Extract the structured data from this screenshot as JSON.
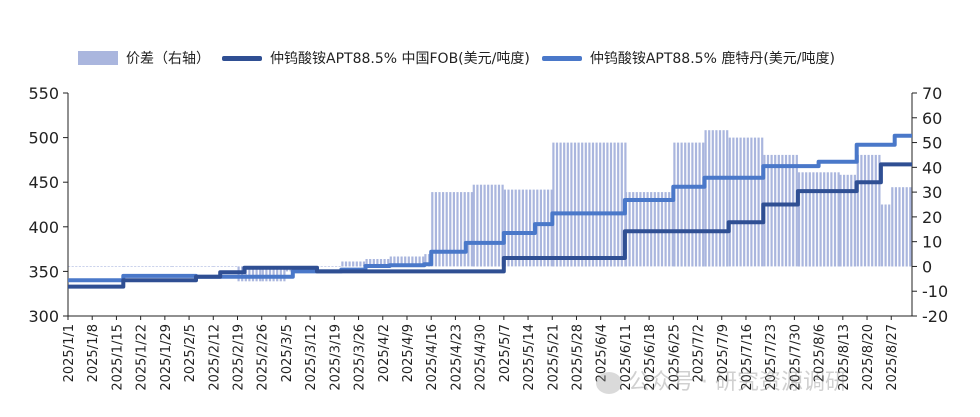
{
  "chart_data": {
    "type": "bar+line",
    "left_axis": {
      "ylim": [
        300,
        550
      ],
      "ticks": [
        300,
        350,
        400,
        450,
        500,
        550
      ]
    },
    "right_axis": {
      "ylim": [
        -20,
        70
      ],
      "ticks": [
        -20,
        -10,
        0,
        10,
        20,
        30,
        40,
        50,
        60,
        70
      ]
    },
    "x_tick_labels": [
      "2025/1/1",
      "2025/1/8",
      "2025/1/15",
      "2025/1/22",
      "2025/1/29",
      "2025/2/5",
      "2025/2/12",
      "2025/2/19",
      "2025/2/26",
      "2025/3/5",
      "2025/3/12",
      "2025/3/19",
      "2025/3/26",
      "2025/4/2",
      "2025/4/9",
      "2025/4/16",
      "2025/4/23",
      "2025/4/30",
      "2025/5/7",
      "2025/5/14",
      "2025/5/21",
      "2025/5/28",
      "2025/6/4",
      "2025/6/11",
      "2025/6/18",
      "2025/6/25",
      "2025/7/2",
      "2025/7/9",
      "2025/7/16",
      "2025/7/23",
      "2025/7/30",
      "2025/8/6",
      "2025/8/13",
      "2025/8/20",
      "2025/8/27"
    ],
    "legend": [
      {
        "label": "价差（右轴）",
        "color": "#aab6de",
        "kind": "bar"
      },
      {
        "label": "仲钨酸铵APT88.5% 中国FOB(美元/吨度)",
        "color": "#2f4f93",
        "kind": "line"
      },
      {
        "label": "仲钨酸铵APT88.5% 鹿特丹(美元/吨度)",
        "color": "#4a78c9",
        "kind": "line"
      }
    ],
    "series": [
      {
        "name": "仲钨酸铵APT88.5% 中国FOB(美元/吨度)",
        "axis": "left",
        "steps": [
          [
            "2025/1/1",
            333
          ],
          [
            "2025/1/17",
            340
          ],
          [
            "2025/1/24",
            340
          ],
          [
            "2025/2/7",
            344
          ],
          [
            "2025/2/14",
            349
          ],
          [
            "2025/2/21",
            354
          ],
          [
            "2025/3/14",
            350
          ],
          [
            "2025/5/7",
            365
          ],
          [
            "2025/6/11",
            395
          ],
          [
            "2025/7/11",
            405
          ],
          [
            "2025/7/21",
            425
          ],
          [
            "2025/7/31",
            440
          ],
          [
            "2025/8/17",
            450
          ],
          [
            "2025/8/24",
            470
          ],
          [
            "2025/9/2",
            470
          ]
        ]
      },
      {
        "name": "仲钨酸铵APT88.5% 鹿特丹(美元/吨度)",
        "axis": "left",
        "steps": [
          [
            "2025/1/1",
            340
          ],
          [
            "2025/1/17",
            345
          ],
          [
            "2025/1/31",
            345
          ],
          [
            "2025/2/7",
            344
          ],
          [
            "2025/2/21",
            344
          ],
          [
            "2025/3/7",
            350
          ],
          [
            "2025/3/21",
            352
          ],
          [
            "2025/3/28",
            356
          ],
          [
            "2025/4/4",
            357
          ],
          [
            "2025/4/14",
            358
          ],
          [
            "2025/4/16",
            372
          ],
          [
            "2025/4/26",
            382
          ],
          [
            "2025/5/7",
            393
          ],
          [
            "2025/5/16",
            403
          ],
          [
            "2025/5/21",
            415
          ],
          [
            "2025/6/11",
            430
          ],
          [
            "2025/6/25",
            445
          ],
          [
            "2025/7/4",
            455
          ],
          [
            "2025/7/21",
            468
          ],
          [
            "2025/8/6",
            473
          ],
          [
            "2025/8/17",
            492
          ],
          [
            "2025/8/28",
            502
          ],
          [
            "2025/9/2",
            502
          ]
        ]
      },
      {
        "name": "价差（右轴）",
        "axis": "right",
        "steps": [
          [
            "2025/1/1",
            0
          ],
          [
            "2025/1/17",
            0
          ],
          [
            "2025/1/31",
            0
          ],
          [
            "2025/2/12",
            0
          ],
          [
            "2025/2/19",
            -6
          ],
          [
            "2025/2/26",
            -6
          ],
          [
            "2025/3/5",
            -2
          ],
          [
            "2025/3/14",
            0
          ],
          [
            "2025/3/21",
            2
          ],
          [
            "2025/3/28",
            3
          ],
          [
            "2025/4/4",
            4
          ],
          [
            "2025/4/14",
            5
          ],
          [
            "2025/4/16",
            30
          ],
          [
            "2025/4/28",
            33
          ],
          [
            "2025/5/7",
            31
          ],
          [
            "2025/5/21",
            50
          ],
          [
            "2025/6/11",
            30
          ],
          [
            "2025/6/25",
            50
          ],
          [
            "2025/7/4",
            55
          ],
          [
            "2025/7/11",
            52
          ],
          [
            "2025/7/21",
            45
          ],
          [
            "2025/7/31",
            38
          ],
          [
            "2025/8/12",
            37
          ],
          [
            "2025/8/17",
            45
          ],
          [
            "2025/8/24",
            25
          ],
          [
            "2025/8/27",
            32
          ]
        ]
      }
    ]
  },
  "watermark": "公众号 · 研究资源调研"
}
